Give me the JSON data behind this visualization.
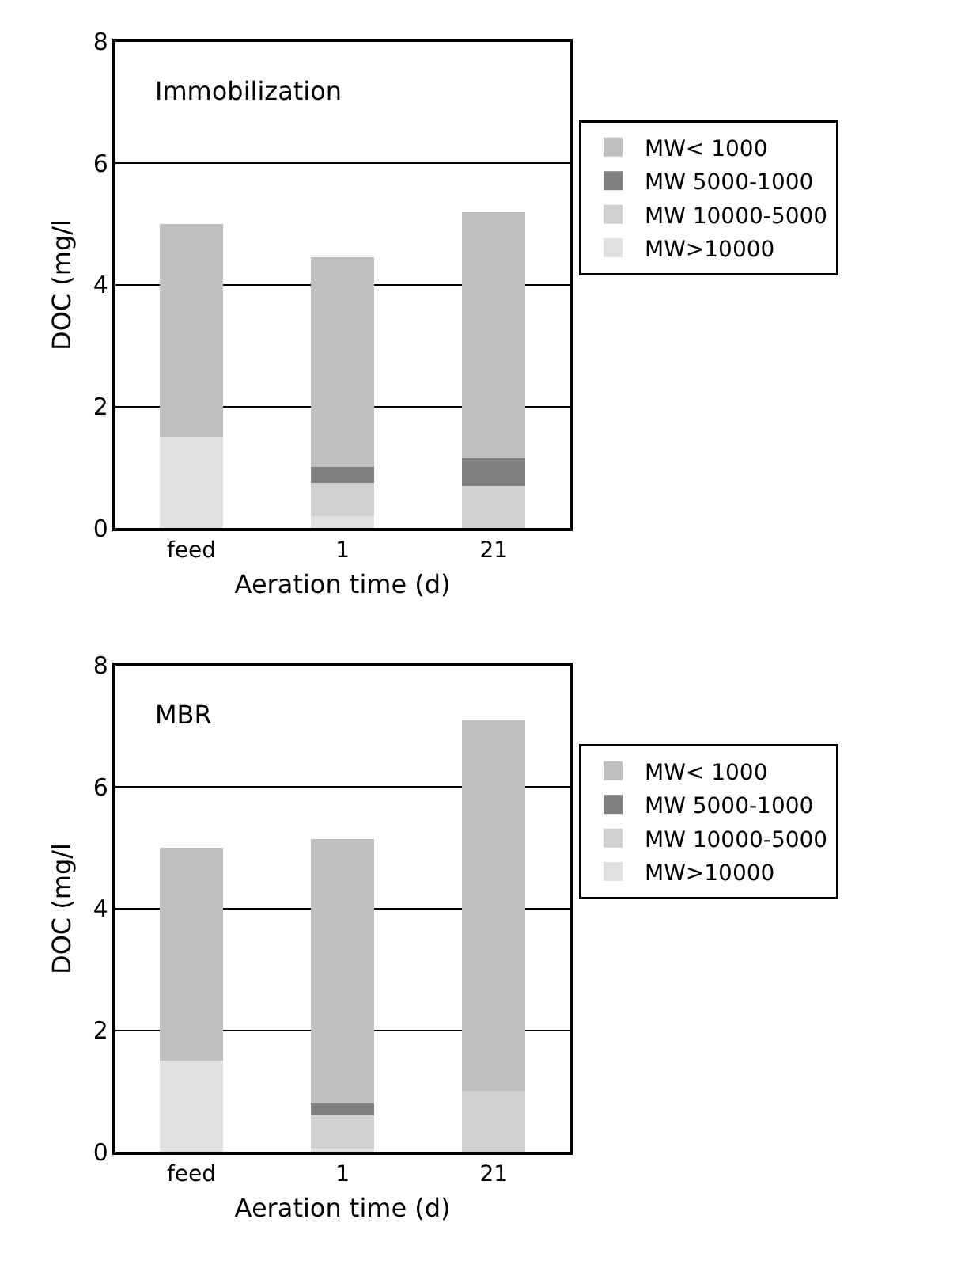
{
  "chart_data": [
    {
      "type": "bar",
      "title": "Immobilization",
      "xlabel": "Aeration time (d)",
      "ylabel": "DOC (mg/l",
      "categories": [
        "feed",
        "1",
        "21"
      ],
      "stacked": true,
      "ylim": [
        0,
        8
      ],
      "yticks": [
        0,
        2,
        4,
        6,
        8
      ],
      "grid": "y",
      "legend": "right",
      "series": [
        {
          "name": "MW>10000",
          "color": "#e0e0e0",
          "values": [
            1.5,
            0.2,
            0
          ]
        },
        {
          "name": "MW 10000-5000",
          "color": "#d0d0d0",
          "values": [
            0,
            0.55,
            0.7
          ]
        },
        {
          "name": "MW 5000-1000",
          "color": "#808080",
          "values": [
            0,
            0.25,
            0.45
          ]
        },
        {
          "name": "MW< 1000",
          "color": "#bfbfbf",
          "values": [
            3.5,
            3.45,
            4.05
          ]
        }
      ]
    },
    {
      "type": "bar",
      "title": "MBR",
      "xlabel": "Aeration time (d)",
      "ylabel": "DOC (mg/l",
      "categories": [
        "feed",
        "1",
        "21"
      ],
      "stacked": true,
      "ylim": [
        0,
        8
      ],
      "yticks": [
        0,
        2,
        4,
        6,
        8
      ],
      "grid": "y",
      "legend": "right",
      "series": [
        {
          "name": "MW>10000",
          "color": "#e0e0e0",
          "values": [
            1.5,
            0.05,
            0
          ]
        },
        {
          "name": "MW 10000-5000",
          "color": "#d0d0d0",
          "values": [
            0,
            0.55,
            1.0
          ]
        },
        {
          "name": "MW 5000-1000",
          "color": "#808080",
          "values": [
            0,
            0.2,
            0
          ]
        },
        {
          "name": "MW< 1000",
          "color": "#bfbfbf",
          "values": [
            3.5,
            4.35,
            6.1
          ]
        }
      ]
    }
  ]
}
